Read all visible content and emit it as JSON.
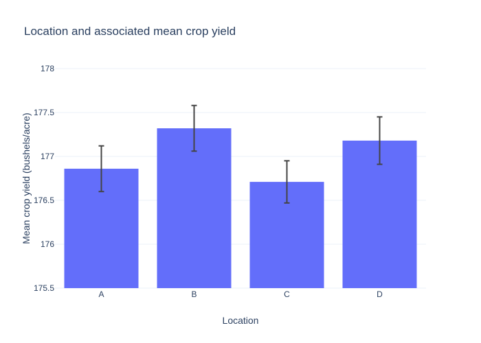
{
  "chart_data": {
    "type": "bar",
    "title": "Location and associated mean crop yield",
    "xlabel": "Location",
    "ylabel": "Mean crop yield (bushels/acre)",
    "categories": [
      "A",
      "B",
      "C",
      "D"
    ],
    "values": [
      176.86,
      177.32,
      176.71,
      177.18
    ],
    "error_low": [
      176.6,
      177.06,
      176.47,
      176.91
    ],
    "error_high": [
      177.12,
      177.58,
      176.95,
      177.45
    ],
    "ylim": [
      175.5,
      178
    ],
    "y_ticks": [
      175.5,
      176,
      176.5,
      177,
      177.5,
      178
    ],
    "y_tick_labels": [
      "175.5",
      "176",
      "176.5",
      "177",
      "177.5",
      "178"
    ],
    "grid": true,
    "colors": {
      "bar": "#636efa",
      "error_bar": "#444444",
      "grid": "#ebf0f8",
      "text": "#2a3f5f"
    }
  }
}
